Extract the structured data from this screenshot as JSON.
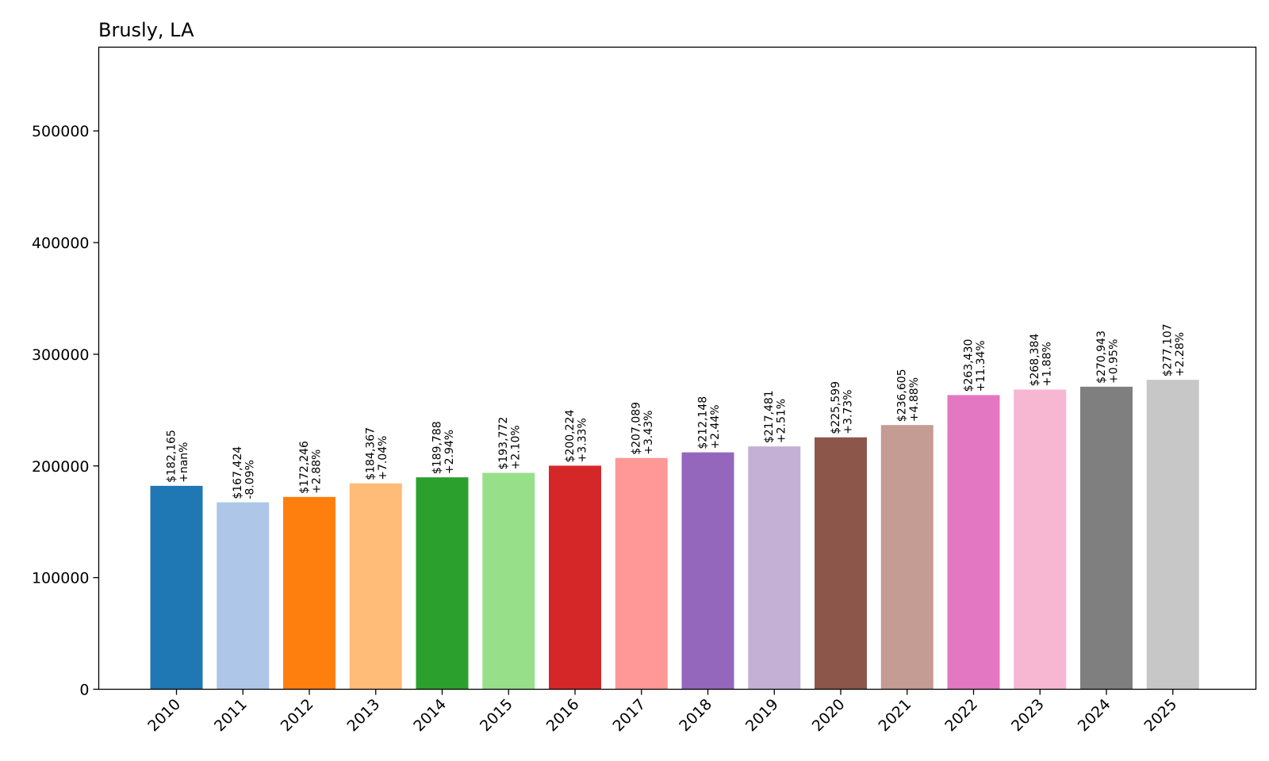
{
  "chart_data": {
    "type": "bar",
    "title": "Brusly, LA",
    "xlabel": "",
    "ylabel": "",
    "categories": [
      "2010",
      "2011",
      "2012",
      "2013",
      "2014",
      "2015",
      "2016",
      "2017",
      "2018",
      "2019",
      "2020",
      "2021",
      "2022",
      "2023",
      "2024",
      "2025"
    ],
    "values": [
      182165,
      167424,
      172246,
      184367,
      189788,
      193772,
      200224,
      207089,
      212148,
      217481,
      225599,
      236605,
      263430,
      268384,
      270943,
      277107
    ],
    "value_labels": [
      "$182,165",
      "$167,424",
      "$172,246",
      "$184,367",
      "$189,788",
      "$193,772",
      "$200,224",
      "$207,089",
      "$212,148",
      "$217,481",
      "$225,599",
      "$236,605",
      "$263,430",
      "$268,384",
      "$270,943",
      "$277,107"
    ],
    "change_labels": [
      "+nan%",
      "-8.09%",
      "+2.88%",
      "+7.04%",
      "+2.94%",
      "+2.10%",
      "+3.33%",
      "+3.43%",
      "+2.44%",
      "+2.51%",
      "+3.73%",
      "+4.88%",
      "+11.34%",
      "+1.88%",
      "+0.95%",
      "+2.28%"
    ],
    "colors": [
      "#1f77b4",
      "#aec7e8",
      "#ff7f0e",
      "#ffbb78",
      "#2ca02c",
      "#98df8a",
      "#d62728",
      "#ff9896",
      "#9467bd",
      "#c5b0d5",
      "#8c564b",
      "#c49c94",
      "#e377c2",
      "#f7b6d2",
      "#7f7f7f",
      "#c7c7c7"
    ],
    "yticks": [
      0,
      100000,
      200000,
      300000,
      400000,
      500000
    ],
    "ytick_labels": [
      "0",
      "100000",
      "200000",
      "300000",
      "400000",
      "500000"
    ],
    "ylim": [
      0,
      575000
    ],
    "grid": false,
    "legend": "none"
  }
}
